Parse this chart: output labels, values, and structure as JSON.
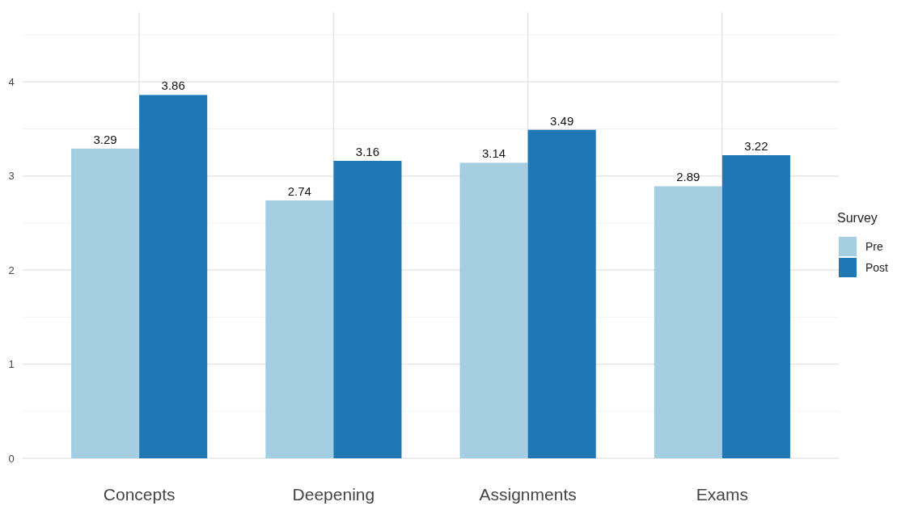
{
  "chart_data": {
    "type": "bar",
    "categories": [
      "Concepts",
      "Deepening",
      "Assignments",
      "Exams"
    ],
    "series": [
      {
        "name": "Pre",
        "color": "#a6cee3",
        "values": [
          3.29,
          2.74,
          3.14,
          2.89
        ]
      },
      {
        "name": "Post",
        "color": "#1f78b4",
        "values": [
          3.86,
          3.16,
          3.49,
          3.22
        ]
      }
    ],
    "legend_title": "Survey",
    "legend": "right",
    "data_labels": true,
    "grid": true,
    "ylim": [
      0,
      4.74
    ],
    "yticks": [
      0,
      {
        "value": 0.5,
        "label": null
      },
      1,
      {
        "value": 1.5,
        "label": null
      },
      2,
      {
        "value": 2.5,
        "label": null
      },
      3,
      {
        "value": 3.5,
        "label": null
      },
      4,
      {
        "value": 4.5,
        "label": null
      }
    ]
  }
}
